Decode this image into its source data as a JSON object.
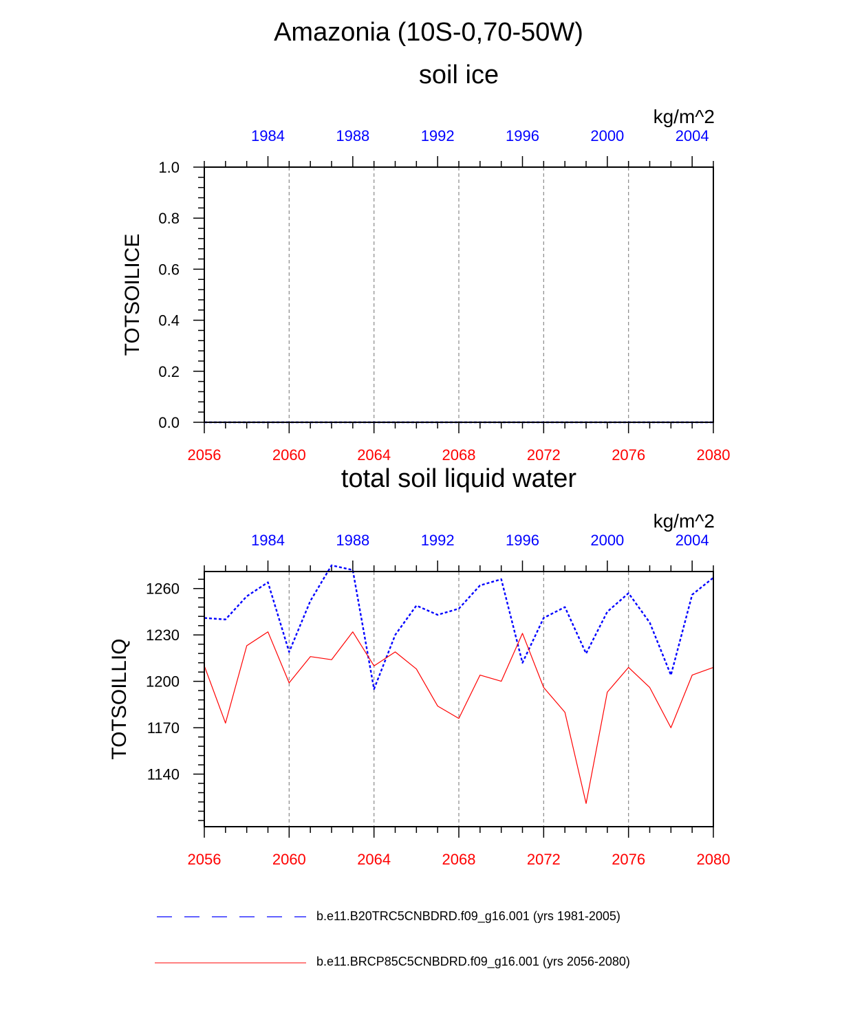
{
  "figure": {
    "main_title": "Amazonia (10S-0,70-50W)",
    "colors": {
      "blue": "#0000ff",
      "red": "#ff0000",
      "grid": "#888888"
    }
  },
  "chart_data": [
    {
      "type": "line",
      "title": "soil ice",
      "ylabel": "TOTSOILICE",
      "units": "kg/m^2",
      "ylim": [
        0.0,
        1.0
      ],
      "ytick_values": [
        0.0,
        0.2,
        0.4,
        0.6,
        0.8,
        1.0
      ],
      "ytick_labels": [
        "0.0",
        "0.2",
        "0.4",
        "0.6",
        "0.8",
        "1.0"
      ],
      "bottom_axis": {
        "range": [
          2056,
          2080
        ],
        "tick_values": [
          2056,
          2060,
          2064,
          2068,
          2072,
          2076,
          2080
        ],
        "tick_labels": [
          "2056",
          "2060",
          "2064",
          "2068",
          "2072",
          "2076",
          "2080"
        ]
      },
      "top_axis": {
        "range": [
          1981,
          2005
        ],
        "tick_values": [
          1984,
          1988,
          1992,
          1996,
          2000,
          2004
        ],
        "tick_labels": [
          "1984",
          "1988",
          "1992",
          "1996",
          "2000",
          "2004"
        ]
      },
      "grid_lines_at": [
        2060,
        2064,
        2068,
        2072,
        2076
      ],
      "series": [
        {
          "name": "b.e11.B20TRC5CNBDRD.f09_g16.001 (yrs 1981-2005)",
          "axis": "top",
          "style": "dashed",
          "x": [
            1981,
            1982,
            1983,
            1984,
            1985,
            1986,
            1987,
            1988,
            1989,
            1990,
            1991,
            1992,
            1993,
            1994,
            1995,
            1996,
            1997,
            1998,
            1999,
            2000,
            2001,
            2002,
            2003,
            2004,
            2005
          ],
          "values": [
            0,
            0,
            0,
            0,
            0,
            0,
            0,
            0,
            0,
            0,
            0,
            0,
            0,
            0,
            0,
            0,
            0,
            0,
            0,
            0,
            0,
            0,
            0,
            0,
            0
          ]
        },
        {
          "name": "b.e11.BRCP85C5CNBDRD.f09_g16.001 (yrs 2056-2080)",
          "axis": "bottom",
          "style": "solid",
          "x": [
            2056,
            2057,
            2058,
            2059,
            2060,
            2061,
            2062,
            2063,
            2064,
            2065,
            2066,
            2067,
            2068,
            2069,
            2070,
            2071,
            2072,
            2073,
            2074,
            2075,
            2076,
            2077,
            2078,
            2079,
            2080
          ],
          "values": [
            0,
            0,
            0,
            0,
            0,
            0,
            0,
            0,
            0,
            0,
            0,
            0,
            0,
            0,
            0,
            0,
            0,
            0,
            0,
            0,
            0,
            0,
            0,
            0,
            0
          ]
        }
      ]
    },
    {
      "type": "line",
      "title": "total soil liquid water",
      "ylabel": "TOTSOILLIQ",
      "units": "kg/m^2",
      "ylim": [
        1106,
        1271
      ],
      "ytick_values": [
        1140,
        1170,
        1200,
        1230,
        1260
      ],
      "ytick_labels": [
        "1140",
        "1170",
        "1200",
        "1230",
        "1260"
      ],
      "bottom_axis": {
        "range": [
          2056,
          2080
        ],
        "tick_values": [
          2056,
          2060,
          2064,
          2068,
          2072,
          2076,
          2080
        ],
        "tick_labels": [
          "2056",
          "2060",
          "2064",
          "2068",
          "2072",
          "2076",
          "2080"
        ]
      },
      "top_axis": {
        "range": [
          1981,
          2005
        ],
        "tick_values": [
          1984,
          1988,
          1992,
          1996,
          2000,
          2004
        ],
        "tick_labels": [
          "1984",
          "1988",
          "1992",
          "1996",
          "2000",
          "2004"
        ]
      },
      "grid_lines_at": [
        2060,
        2064,
        2068,
        2072,
        2076
      ],
      "series": [
        {
          "name": "b.e11.B20TRC5CNBDRD.f09_g16.001 (yrs 1981-2005)",
          "axis": "top",
          "style": "dashed",
          "x": [
            1981,
            1982,
            1983,
            1984,
            1985,
            1986,
            1987,
            1988,
            1989,
            1990,
            1991,
            1992,
            1993,
            1994,
            1995,
            1996,
            1997,
            1998,
            1999,
            2000,
            2001,
            2002,
            2003,
            2004,
            2005
          ],
          "values": [
            1241,
            1240,
            1255,
            1264,
            1219,
            1252,
            1275,
            1272,
            1195,
            1230,
            1249,
            1243,
            1247,
            1262,
            1266,
            1212,
            1241,
            1248,
            1218,
            1245,
            1257,
            1238,
            1204,
            1256,
            1267
          ]
        },
        {
          "name": "b.e11.BRCP85C5CNBDRD.f09_g16.001 (yrs 2056-2080)",
          "axis": "bottom",
          "style": "solid",
          "x": [
            2056,
            2057,
            2058,
            2059,
            2060,
            2061,
            2062,
            2063,
            2064,
            2065,
            2066,
            2067,
            2068,
            2069,
            2070,
            2071,
            2072,
            2073,
            2074,
            2075,
            2076,
            2077,
            2078,
            2079,
            2080
          ],
          "values": [
            1210,
            1173,
            1223,
            1232,
            1199,
            1216,
            1214,
            1232,
            1210,
            1219,
            1208,
            1184,
            1176,
            1204,
            1200,
            1231,
            1196,
            1180,
            1121,
            1193,
            1209,
            1196,
            1170,
            1204,
            1209
          ]
        }
      ]
    }
  ],
  "legend": {
    "items": [
      {
        "label": "b.e11.B20TRC5CNBDRD.f09_g16.001 (yrs 1981-2005)",
        "color": "#0000ff",
        "style": "dashed"
      },
      {
        "label": "b.e11.BRCP85C5CNBDRD.f09_g16.001 (yrs 2056-2080)",
        "color": "#ff0000",
        "style": "solid"
      }
    ]
  }
}
